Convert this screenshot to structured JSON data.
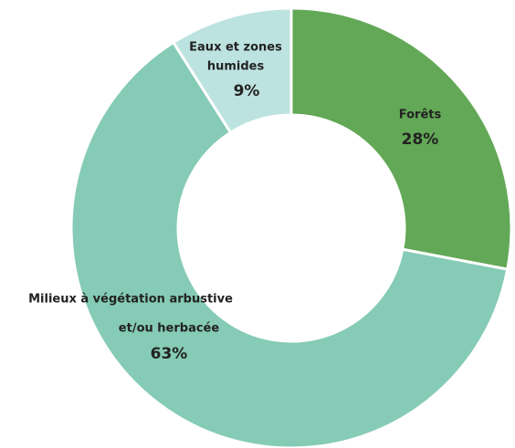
{
  "chart_data": {
    "type": "donut",
    "categories": [
      [
        "Forêts"
      ],
      [
        "Milieux à végétation arbustive",
        "et/ou herbacée"
      ],
      [
        "Eaux et zones",
        "humides"
      ]
    ],
    "values": [
      28,
      63,
      9
    ],
    "value_labels": [
      "28%",
      "63%",
      "9%"
    ],
    "colors": [
      "#62a856",
      "#85cbb5",
      "#bde3e0"
    ]
  }
}
